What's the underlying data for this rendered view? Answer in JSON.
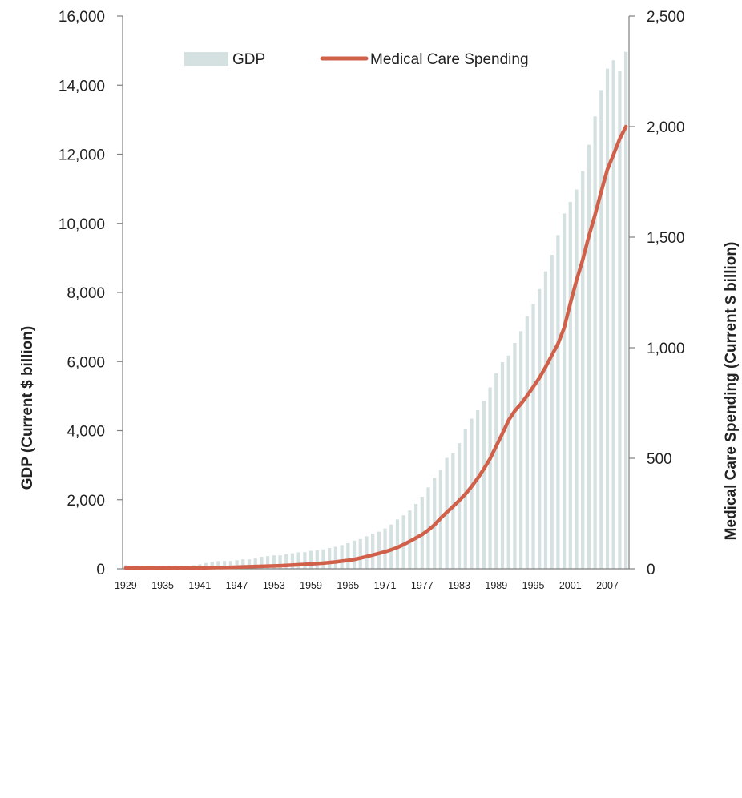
{
  "chart_data": {
    "type": "bar",
    "title": "",
    "x": [
      1929,
      1930,
      1931,
      1932,
      1933,
      1934,
      1935,
      1936,
      1937,
      1938,
      1939,
      1940,
      1941,
      1942,
      1943,
      1944,
      1945,
      1946,
      1947,
      1948,
      1949,
      1950,
      1951,
      1952,
      1953,
      1954,
      1955,
      1956,
      1957,
      1958,
      1959,
      1960,
      1961,
      1962,
      1963,
      1964,
      1965,
      1966,
      1967,
      1968,
      1969,
      1970,
      1971,
      1972,
      1973,
      1974,
      1975,
      1976,
      1977,
      1978,
      1979,
      1980,
      1981,
      1982,
      1983,
      1984,
      1985,
      1986,
      1987,
      1988,
      1989,
      1990,
      1991,
      1992,
      1993,
      1994,
      1995,
      1996,
      1997,
      1998,
      1999,
      2000,
      2001,
      2002,
      2003,
      2004,
      2005,
      2006,
      2007,
      2008,
      2009,
      2010
    ],
    "x_tick_labels": [
      "1929",
      "1935",
      "1941",
      "1947",
      "1953",
      "1959",
      "1965",
      "1971",
      "1977",
      "1983",
      "1989",
      "1995",
      "2001",
      "2007"
    ],
    "x_tick_years": [
      1929,
      1935,
      1941,
      1947,
      1953,
      1959,
      1965,
      1971,
      1977,
      1983,
      1989,
      1995,
      2001,
      2007
    ],
    "y_left": {
      "label": "GDP (Current $ billion)",
      "ylim": [
        0,
        16000
      ],
      "ticks": [
        0,
        2000,
        4000,
        6000,
        8000,
        10000,
        12000,
        14000,
        16000
      ],
      "tick_labels": [
        "0",
        "2,000",
        "4,000",
        "6,000",
        "8,000",
        "10,000",
        "12,000",
        "14,000",
        "16,000"
      ]
    },
    "y_right": {
      "label": "Medical Care Spending (Current $ billion)",
      "ylim": [
        0,
        2500
      ],
      "ticks": [
        0,
        500,
        1000,
        1500,
        2000,
        2500
      ],
      "tick_labels": [
        "0",
        "500",
        "1,000",
        "1,500",
        "2,000",
        "2,500"
      ]
    },
    "series": [
      {
        "name": "GDP",
        "type": "bar",
        "axis": "left",
        "color": "#d5e0e0",
        "values": [
          104,
          92,
          77,
          60,
          57,
          67,
          74,
          85,
          93,
          87,
          93,
          103,
          129,
          166,
          203,
          224,
          228,
          227,
          249,
          274,
          272,
          300,
          347,
          367,
          389,
          391,
          425,
          449,
          474,
          482,
          522,
          543,
          563,
          605,
          638,
          686,
          744,
          815,
          862,
          943,
          1019,
          1076,
          1168,
          1282,
          1429,
          1549,
          1689,
          1878,
          2086,
          2357,
          2632,
          2862,
          3211,
          3345,
          3638,
          4041,
          4347,
          4590,
          4870,
          5253,
          5658,
          5980,
          6174,
          6539,
          6879,
          7309,
          7664,
          8100,
          8609,
          9089,
          9661,
          10285,
          10622,
          10978,
          11511,
          12275,
          13094,
          13856,
          14478,
          14719,
          14419,
          14964
        ]
      },
      {
        "name": "Medical Care Spending",
        "type": "line",
        "axis": "right",
        "color": "#d0604a",
        "values": [
          3.5,
          3.4,
          3.2,
          2.9,
          2.7,
          2.9,
          3.1,
          3.3,
          3.5,
          3.5,
          3.7,
          3.9,
          4.2,
          4.7,
          5.2,
          5.7,
          6.1,
          6.9,
          7.9,
          8.8,
          9.3,
          10.4,
          11.3,
          12.3,
          13.3,
          14.2,
          15.5,
          17.0,
          18.7,
          20.1,
          22.1,
          24.0,
          26.0,
          28.6,
          31.3,
          34.8,
          38.1,
          42.6,
          48.5,
          55.3,
          62.5,
          69.8,
          77.2,
          86.3,
          96.7,
          109.7,
          124.3,
          139.5,
          155.2,
          175.0,
          199.0,
          229.0,
          256.0,
          282.0,
          309.0,
          338.0,
          372.0,
          410.0,
          452.0,
          498.0,
          555.0,
          612.0,
          672.0,
          714.0,
          746.0,
          783.0,
          823.0,
          864.0,
          913.0,
          966.0,
          1018.0,
          1090.0,
          1201.0,
          1305.0,
          1397.0,
          1505.0,
          1602.0,
          1706.0,
          1806.0,
          1874.0,
          1945.0,
          2000.0
        ]
      }
    ],
    "legend": {
      "placement": "top",
      "entries": [
        "GDP",
        "Medical Care Spending"
      ]
    },
    "grid": false
  }
}
